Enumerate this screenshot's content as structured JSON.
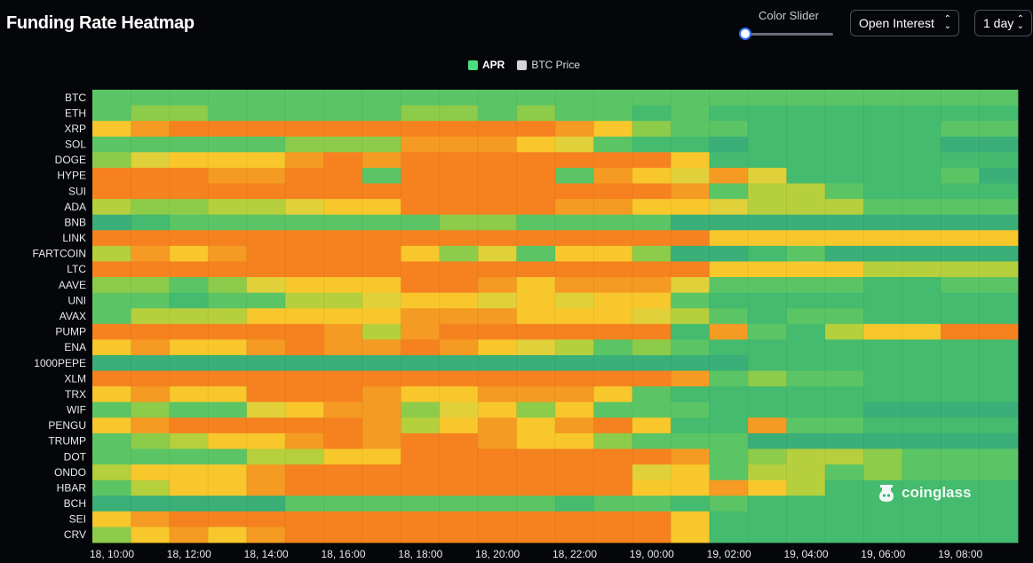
{
  "header": {
    "title": "Funding Rate Heatmap",
    "slider_label": "Color Slider",
    "metric_select": "Open Interest",
    "range_select": "1 day"
  },
  "legend": [
    {
      "label": "APR",
      "color": "#4ade80"
    },
    {
      "label": "BTC Price",
      "color": "#d4d4d4"
    }
  ],
  "watermark": "coinglass",
  "colors": {
    "O": "#f5821f",
    "o": "#f59a22",
    "Y": "#f8c72c",
    "y": "#e0d03a",
    "L": "#b6cf3c",
    "l": "#8dcc4a",
    "G": "#5bc565",
    "g": "#44bb6e",
    "T": "#3aaf77",
    "t": "#2ea57c"
  },
  "chart_data": {
    "type": "heatmap",
    "title": "Funding Rate Heatmap",
    "series_name": "APR",
    "x_ticks": [
      "18, 10:00",
      "18, 12:00",
      "18, 14:00",
      "18, 16:00",
      "18, 18:00",
      "18, 20:00",
      "18, 22:00",
      "19, 00:00",
      "19, 02:00",
      "19, 04:00",
      "19, 06:00",
      "19, 08:00"
    ],
    "y_labels": [
      "BTC",
      "ETH",
      "XRP",
      "SOL",
      "DOGE",
      "HYPE",
      "SUI",
      "ADA",
      "BNB",
      "LINK",
      "FARTCOIN",
      "LTC",
      "AAVE",
      "UNI",
      "AVAX",
      "PUMP",
      "ENA",
      "1000PEPE",
      "XLM",
      "TRX",
      "WIF",
      "PENGU",
      "TRUMP",
      "DOT",
      "ONDO",
      "HBAR",
      "BCH",
      "SEI",
      "CRV"
    ],
    "scale_note": "cell codes: O orange (highest) > o > Y yellow > y > L > l > G green > g > T > t teal (lowest)",
    "rows": [
      "GGGGGGGGGGGGGGGGGGGGGGGG",
      "GllGGGGGllGlGGgGgggggggg",
      "YoOOOOOOOOOOoYlGGgggggGG",
      "GGGGGllloooYyGggTgggggTT",
      "lyYYYoOoOOOOOOOYgggggggg",
      "OOOooOOGOOOOGoYyoyggggGT",
      "OOOOOOOOOOOOOOOoGLLGgggg",
      "LllLLyYYOOOOooYYyLLLGGGG",
      "TgGGGGGGGllGGGGTTTTTTTTT",
      "OOOOOOOOOOOOOOOOYYYYYYYY",
      "LoYoOOOOYlyGYYlTTgGTTTTT",
      "OOOOOOOOOOOOOOOOYYYYLLLL",
      "llGlyYYYOOoYoooyGGGGggGG",
      "GGgGGLLyYYyYyYYGgggggggg",
      "GLLLYYYYoooYYYyLGgGGgggg",
      "OOOOOOoLoOOOOOOgoGgLYYOO",
      "YoYYoOooOoYyLGlGgggggggg",
      "TTTTTTTTTTTTTTTTTggggggg",
      "OOOOOOOOOOOOOOOoGlGGgggg",
      "YoYYOOOoYYoooYGggggggggg",
      "GlGGyYoolyYlYGGGggggTTTT",
      "YoOOOOOoLYoYoOYggoGGgggg",
      "GlLYYoOoOOoYYlGGGTTTTTTT",
      "GGGGLLYYOOOOOOOoGlLLlGGG",
      "LYYYoOOOOOOOOOyYGLLGlGGG",
      "GLYYoOOOOOOOOOYYoYLggggg",
      "TTTTTGGGGGGGgGGgGggggggg",
      "YoOOOOOOOOOOOOOYgggggggg",
      "lYoYoOOOOOOOOOOYgggggggg"
    ]
  }
}
